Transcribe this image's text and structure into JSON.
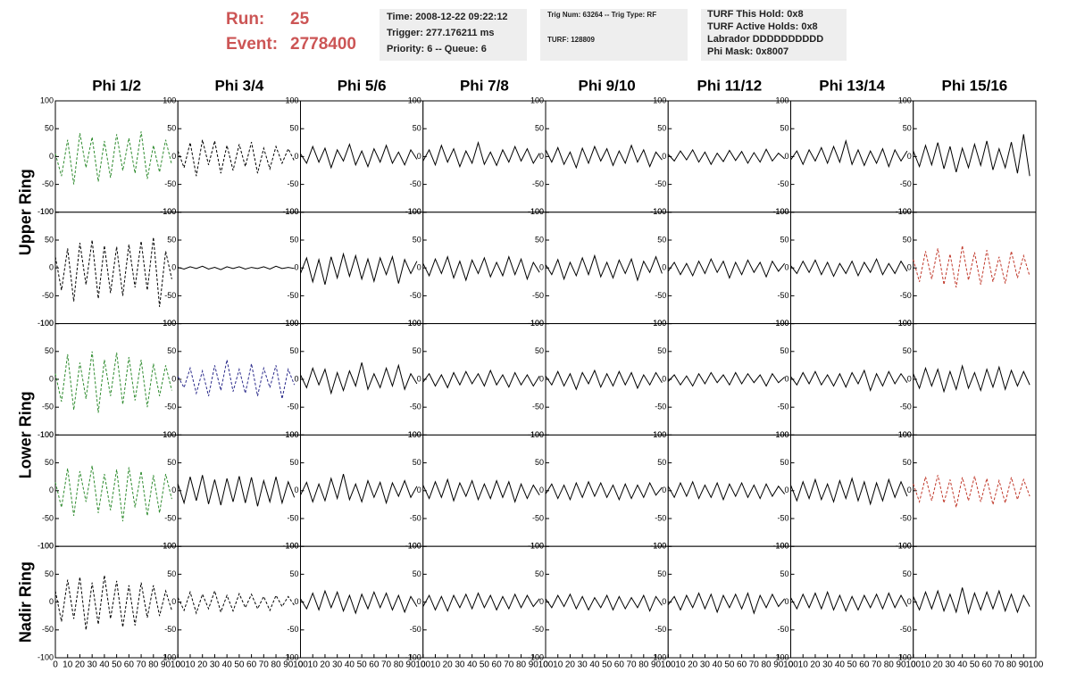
{
  "header": {
    "run_label": "Run:",
    "run": "25",
    "event_label": "Event:",
    "event": "2778400",
    "box1": [
      "Time: 2008-12-22 09:22:12",
      "Trigger: 277.176211 ms",
      "Priority: 6 -- Queue: 6"
    ],
    "box2": [
      "Trig Num: 63264 -- Trig Type: RF",
      "TURF: 128809"
    ],
    "box3": [
      "TURF This Hold: 0x8",
      "TURF Active Holds: 0x8",
      "Labrador DDDDDDDDDD",
      "Phi Mask: 0x8007"
    ]
  },
  "chart_data": {
    "type": "line",
    "columns": [
      "Phi 1/2",
      "Phi 3/4",
      "Phi 5/6",
      "Phi 7/8",
      "Phi 9/10",
      "Phi 11/12",
      "Phi 13/14",
      "Phi 15/16"
    ],
    "row_labels": [
      "Upper Ring",
      "Lower Ring",
      "Nadir Ring"
    ],
    "xlim": [
      0,
      100
    ],
    "xticks": [
      0,
      10,
      20,
      30,
      40,
      50,
      60,
      70,
      80,
      90,
      100
    ],
    "ylim": [
      -100,
      100
    ],
    "yticks": [
      -100,
      -50,
      0,
      50,
      100
    ],
    "x": [
      0,
      5,
      10,
      15,
      20,
      25,
      30,
      35,
      40,
      45,
      50,
      55,
      60,
      65,
      70,
      75,
      80,
      85,
      90,
      95
    ],
    "panels": [
      [
        {
          "color": "#2e8b2e",
          "dashed": true,
          "values": [
            5,
            -35,
            30,
            -50,
            42,
            -20,
            35,
            -45,
            28,
            -38,
            40,
            -25,
            33,
            -30,
            45,
            -40,
            20,
            -28,
            30,
            -15
          ]
        },
        {
          "color": "#000000",
          "dashed": true,
          "values": [
            10,
            -20,
            25,
            -35,
            30,
            -15,
            28,
            -30,
            20,
            -25,
            22,
            -18,
            26,
            -30,
            15,
            -22,
            18,
            -12,
            14,
            -8
          ]
        },
        {
          "color": "#000000",
          "dashed": false,
          "values": [
            5,
            -12,
            18,
            -10,
            15,
            -20,
            12,
            -8,
            22,
            -15,
            10,
            -18,
            14,
            -10,
            20,
            -12,
            8,
            -15,
            12,
            -5
          ]
        },
        {
          "color": "#000000",
          "dashed": false,
          "values": [
            -8,
            12,
            -15,
            20,
            -10,
            14,
            -18,
            10,
            -12,
            25,
            -14,
            8,
            -16,
            12,
            -10,
            18,
            -8,
            14,
            -12,
            6
          ]
        },
        {
          "color": "#000000",
          "dashed": false,
          "values": [
            12,
            -10,
            16,
            -14,
            8,
            -20,
            15,
            -12,
            18,
            -8,
            14,
            -16,
            10,
            -12,
            20,
            -10,
            12,
            -18,
            8,
            -6
          ]
        },
        {
          "color": "#000000",
          "dashed": false,
          "values": [
            4,
            -8,
            10,
            -6,
            12,
            -10,
            8,
            -14,
            6,
            -9,
            11,
            -7,
            9,
            -12,
            7,
            -10,
            13,
            -8,
            6,
            -4
          ]
        },
        {
          "color": "#000000",
          "dashed": false,
          "values": [
            -6,
            10,
            -14,
            12,
            -8,
            16,
            -12,
            18,
            -10,
            28,
            -14,
            12,
            -16,
            10,
            -12,
            14,
            -18,
            12,
            -8,
            10
          ]
        },
        {
          "color": "#000000",
          "dashed": false,
          "values": [
            10,
            -18,
            20,
            -15,
            25,
            -22,
            18,
            -28,
            15,
            -20,
            22,
            -16,
            28,
            -24,
            14,
            -20,
            26,
            -30,
            40,
            -35
          ]
        }
      ],
      [
        {
          "color": "#000000",
          "dashed": true,
          "values": [
            20,
            -40,
            35,
            -60,
            45,
            -30,
            50,
            -55,
            40,
            -45,
            38,
            -50,
            42,
            -35,
            48,
            -40,
            55,
            -70,
            30,
            -20
          ]
        },
        {
          "color": "#000000",
          "dashed": false,
          "values": [
            1,
            -2,
            2,
            -1,
            3,
            -2,
            1,
            -3,
            2,
            -1,
            2,
            -2,
            1,
            -1,
            2,
            -2,
            3,
            -1,
            1,
            -1
          ]
        },
        {
          "color": "#000000",
          "dashed": false,
          "values": [
            -10,
            18,
            -25,
            15,
            -30,
            20,
            -18,
            25,
            -15,
            22,
            -20,
            16,
            -24,
            18,
            -12,
            20,
            -28,
            15,
            -10,
            12
          ]
        },
        {
          "color": "#000000",
          "dashed": false,
          "values": [
            8,
            -14,
            16,
            -10,
            20,
            -18,
            12,
            -22,
            14,
            -10,
            18,
            -16,
            10,
            -14,
            20,
            -12,
            16,
            -20,
            10,
            -8
          ]
        },
        {
          "color": "#000000",
          "dashed": false,
          "values": [
            6,
            -12,
            15,
            -20,
            10,
            -14,
            18,
            -12,
            22,
            -16,
            10,
            -18,
            14,
            -10,
            16,
            -22,
            12,
            -8,
            20,
            -10
          ]
        },
        {
          "color": "#000000",
          "dashed": false,
          "values": [
            -6,
            10,
            -12,
            8,
            -14,
            12,
            -10,
            16,
            -8,
            12,
            -18,
            10,
            -12,
            14,
            -8,
            10,
            -16,
            12,
            -6,
            8
          ]
        },
        {
          "color": "#000000",
          "dashed": false,
          "values": [
            4,
            -10,
            12,
            -8,
            14,
            -12,
            10,
            -15,
            8,
            -10,
            12,
            -14,
            10,
            -8,
            16,
            -12,
            8,
            -10,
            12,
            -6
          ]
        },
        {
          "color": "#c0392b",
          "dashed": true,
          "values": [
            15,
            -25,
            30,
            -20,
            35,
            -30,
            25,
            -35,
            40,
            -22,
            28,
            -30,
            32,
            -25,
            20,
            -28,
            30,
            -18,
            22,
            -15
          ]
        }
      ],
      [
        {
          "color": "#2e8b2e",
          "dashed": true,
          "values": [
            10,
            -40,
            45,
            -55,
            30,
            -35,
            50,
            -60,
            35,
            -30,
            48,
            -45,
            40,
            -38,
            35,
            -50,
            28,
            -30,
            25,
            -20
          ]
        },
        {
          "color": "#2a2a8a",
          "dashed": true,
          "values": [
            5,
            -15,
            20,
            -25,
            15,
            -30,
            25,
            -20,
            35,
            -22,
            18,
            -25,
            28,
            -30,
            20,
            -15,
            25,
            -35,
            18,
            -10
          ]
        },
        {
          "color": "#000000",
          "dashed": false,
          "values": [
            8,
            -15,
            20,
            -10,
            18,
            -25,
            12,
            -20,
            15,
            -12,
            30,
            -18,
            10,
            -15,
            20,
            -12,
            25,
            -18,
            10,
            -8
          ]
        },
        {
          "color": "#000000",
          "dashed": false,
          "values": [
            -5,
            10,
            -12,
            8,
            -15,
            12,
            -10,
            14,
            -8,
            10,
            -12,
            16,
            -10,
            8,
            -14,
            12,
            -10,
            8,
            -12,
            6
          ]
        },
        {
          "color": "#000000",
          "dashed": false,
          "values": [
            6,
            -10,
            14,
            -12,
            10,
            -18,
            12,
            -8,
            16,
            -14,
            10,
            -12,
            14,
            -10,
            12,
            -16,
            8,
            -10,
            12,
            -6
          ]
        },
        {
          "color": "#000000",
          "dashed": false,
          "values": [
            -4,
            8,
            -10,
            6,
            -12,
            10,
            -8,
            12,
            -6,
            8,
            -10,
            12,
            -8,
            10,
            -6,
            8,
            -12,
            10,
            -6,
            4
          ]
        },
        {
          "color": "#000000",
          "dashed": false,
          "values": [
            5,
            -10,
            12,
            -8,
            14,
            -10,
            8,
            -12,
            10,
            -14,
            12,
            -8,
            16,
            -20,
            10,
            -12,
            14,
            -8,
            10,
            -6
          ]
        },
        {
          "color": "#000000",
          "dashed": false,
          "values": [
            10,
            -16,
            20,
            -12,
            18,
            -22,
            14,
            -18,
            24,
            -16,
            12,
            -20,
            18,
            -14,
            22,
            -18,
            16,
            -12,
            14,
            -10
          ]
        }
      ],
      [
        {
          "color": "#2e8b2e",
          "dashed": true,
          "values": [
            15,
            -30,
            40,
            -45,
            35,
            -20,
            45,
            -40,
            30,
            -35,
            38,
            -55,
            42,
            -30,
            35,
            -45,
            28,
            -40,
            30,
            -15
          ]
        },
        {
          "color": "#000000",
          "dashed": false,
          "values": [
            12,
            -22,
            25,
            -18,
            28,
            -24,
            20,
            -26,
            22,
            -20,
            26,
            -22,
            24,
            -28,
            18,
            -20,
            25,
            -22,
            16,
            -12
          ]
        },
        {
          "color": "#000000",
          "dashed": false,
          "values": [
            -8,
            15,
            -20,
            12,
            -18,
            22,
            -14,
            30,
            -16,
            12,
            -20,
            18,
            -12,
            15,
            -22,
            14,
            -10,
            18,
            -12,
            8
          ]
        },
        {
          "color": "#000000",
          "dashed": false,
          "values": [
            10,
            -14,
            16,
            -12,
            20,
            -18,
            14,
            -10,
            18,
            -16,
            12,
            -14,
            18,
            -12,
            16,
            -20,
            12,
            -14,
            10,
            -8
          ]
        },
        {
          "color": "#000000",
          "dashed": false,
          "values": [
            -6,
            12,
            -14,
            10,
            -16,
            14,
            -12,
            16,
            -10,
            14,
            -12,
            10,
            -16,
            12,
            -14,
            10,
            -12,
            14,
            -8,
            6
          ]
        },
        {
          "color": "#000000",
          "dashed": false,
          "values": [
            8,
            -12,
            14,
            -10,
            16,
            -14,
            10,
            -12,
            14,
            -16,
            12,
            -10,
            14,
            -12,
            10,
            -14,
            12,
            -10,
            8,
            -6
          ]
        },
        {
          "color": "#000000",
          "dashed": false,
          "values": [
            10,
            -18,
            16,
            -14,
            20,
            -16,
            12,
            -20,
            18,
            -14,
            22,
            -18,
            16,
            -24,
            14,
            -18,
            20,
            -12,
            16,
            -10
          ]
        },
        {
          "color": "#c0392b",
          "dashed": true,
          "values": [
            12,
            -20,
            25,
            -18,
            28,
            -22,
            20,
            -30,
            24,
            -18,
            26,
            -20,
            22,
            -25,
            18,
            -22,
            24,
            -16,
            20,
            -10
          ]
        }
      ],
      [
        {
          "color": "#000000",
          "dashed": true,
          "values": [
            20,
            -35,
            40,
            -30,
            45,
            -50,
            35,
            -40,
            48,
            -30,
            38,
            -45,
            30,
            -42,
            35,
            -28,
            30,
            -25,
            20,
            -15
          ]
        },
        {
          "color": "#000000",
          "dashed": true,
          "values": [
            8,
            -15,
            18,
            -20,
            14,
            -12,
            20,
            -18,
            12,
            -16,
            15,
            -10,
            14,
            -12,
            10,
            -15,
            12,
            -8,
            10,
            -6
          ]
        },
        {
          "color": "#000000",
          "dashed": false,
          "values": [
            6,
            -12,
            16,
            -14,
            20,
            -10,
            18,
            -16,
            12,
            -20,
            14,
            -12,
            18,
            -10,
            16,
            -14,
            12,
            -18,
            10,
            -8
          ]
        },
        {
          "color": "#000000",
          "dashed": false,
          "values": [
            -8,
            12,
            -14,
            10,
            -16,
            12,
            -10,
            14,
            -12,
            16,
            -10,
            12,
            -14,
            10,
            -12,
            14,
            -10,
            12,
            -8,
            6
          ]
        },
        {
          "color": "#000000",
          "dashed": false,
          "values": [
            6,
            -10,
            12,
            -8,
            14,
            -12,
            10,
            -14,
            8,
            -10,
            12,
            -14,
            10,
            -12,
            8,
            -10,
            12,
            -16,
            10,
            -6
          ]
        },
        {
          "color": "#000000",
          "dashed": false,
          "values": [
            -5,
            10,
            -14,
            12,
            -10,
            16,
            -12,
            14,
            -18,
            12,
            -10,
            14,
            -12,
            16,
            -20,
            12,
            -10,
            14,
            -8,
            6
          ]
        },
        {
          "color": "#000000",
          "dashed": false,
          "values": [
            8,
            -12,
            14,
            -10,
            16,
            -12,
            18,
            -14,
            12,
            -16,
            10,
            -14,
            12,
            -10,
            14,
            -12,
            16,
            -10,
            12,
            -8
          ]
        },
        {
          "color": "#000000",
          "dashed": false,
          "values": [
            10,
            -14,
            18,
            -12,
            20,
            -16,
            14,
            -18,
            26,
            -20,
            16,
            -14,
            18,
            -12,
            20,
            -16,
            14,
            -18,
            12,
            -8
          ]
        }
      ]
    ]
  }
}
